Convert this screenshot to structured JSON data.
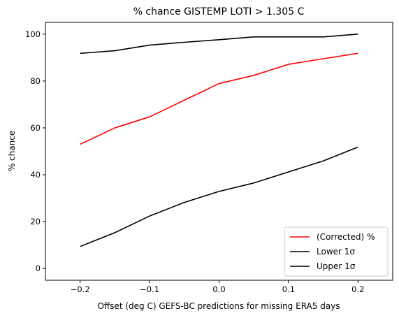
{
  "chart_data": {
    "type": "line",
    "title": "% chance GISTEMP LOTI > 1.305 C",
    "xlabel": "Offset (deg C) GEFS-BC predictions for missing ERA5 days",
    "ylabel": "% chance",
    "xlim": [
      -0.25,
      0.25
    ],
    "ylim": [
      -5,
      105
    ],
    "xticks": [
      -0.2,
      -0.1,
      0.0,
      0.1,
      0.2
    ],
    "xtick_labels": [
      "−0.2",
      "−0.1",
      "0.0",
      "0.1",
      "0.2"
    ],
    "yticks": [
      0,
      20,
      40,
      60,
      80,
      100
    ],
    "ytick_labels": [
      "0",
      "20",
      "40",
      "60",
      "80",
      "100"
    ],
    "grid": false,
    "legend_position": "lower-right",
    "x": [
      -0.2,
      -0.15,
      -0.1,
      -0.05,
      0.0,
      0.05,
      0.1,
      0.15,
      0.2
    ],
    "series": [
      {
        "name": "(Corrected) %",
        "color": "#ff0000",
        "values": [
          53.0,
          60.0,
          64.7,
          71.8,
          78.9,
          82.4,
          87.1,
          89.5,
          91.8
        ]
      },
      {
        "name": "Lower 1σ",
        "color": "#000000",
        "values": [
          9.4,
          15.3,
          22.4,
          28.2,
          32.9,
          36.5,
          41.2,
          45.9,
          51.8
        ]
      },
      {
        "name": "Upper 1σ",
        "color": "#000000",
        "values": [
          91.8,
          92.9,
          95.3,
          96.5,
          97.6,
          98.8,
          98.8,
          98.8,
          100.0
        ]
      }
    ]
  }
}
